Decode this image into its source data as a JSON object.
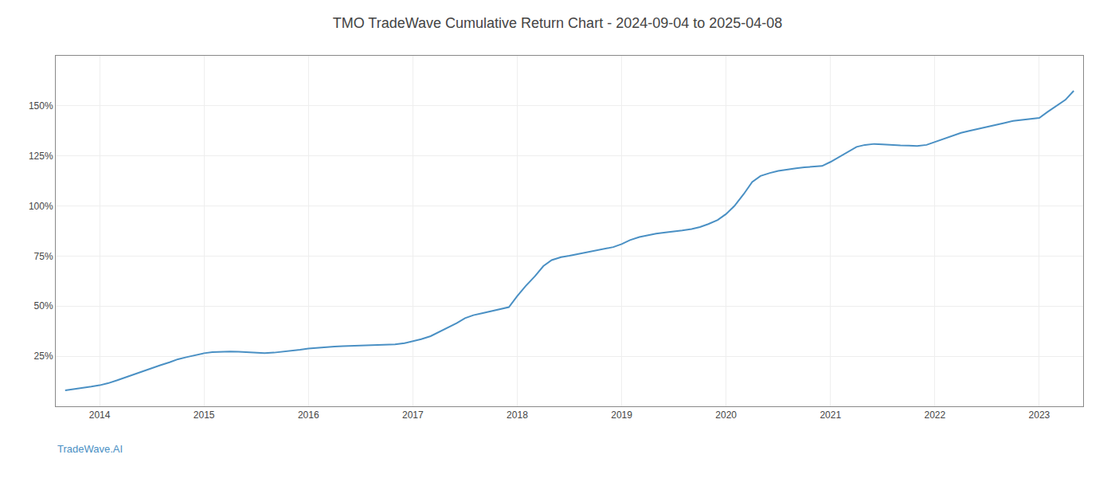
{
  "chart_data": {
    "type": "line",
    "title": "TMO TradeWave Cumulative Return Chart - 2024-09-04 to 2025-04-08",
    "annotations": [
      "TradeWave.AI"
    ],
    "color": "#4a90c4",
    "x": [
      2013.67,
      2013.75,
      2013.83,
      2013.92,
      2014.0,
      2014.08,
      2014.17,
      2014.25,
      2014.33,
      2014.42,
      2014.5,
      2014.58,
      2014.67,
      2014.75,
      2014.83,
      2014.92,
      2015.0,
      2015.08,
      2015.17,
      2015.25,
      2015.33,
      2015.42,
      2015.5,
      2015.58,
      2015.67,
      2015.75,
      2015.83,
      2015.92,
      2016.0,
      2016.08,
      2016.17,
      2016.25,
      2016.33,
      2016.42,
      2016.5,
      2016.58,
      2016.67,
      2016.75,
      2016.83,
      2016.92,
      2017.0,
      2017.08,
      2017.17,
      2017.25,
      2017.33,
      2017.42,
      2017.5,
      2017.58,
      2017.67,
      2017.75,
      2017.83,
      2017.92,
      2018.0,
      2018.08,
      2018.17,
      2018.25,
      2018.33,
      2018.42,
      2018.5,
      2018.58,
      2018.67,
      2018.75,
      2018.83,
      2018.92,
      2019.0,
      2019.08,
      2019.17,
      2019.25,
      2019.33,
      2019.42,
      2019.5,
      2019.58,
      2019.67,
      2019.75,
      2019.83,
      2019.92,
      2020.0,
      2020.08,
      2020.17,
      2020.25,
      2020.33,
      2020.42,
      2020.5,
      2020.58,
      2020.67,
      2020.75,
      2020.83,
      2020.92,
      2021.0,
      2021.08,
      2021.17,
      2021.25,
      2021.33,
      2021.42,
      2021.5,
      2021.58,
      2021.67,
      2021.75,
      2021.83,
      2021.92,
      2022.0,
      2022.08,
      2022.17,
      2022.25,
      2022.33,
      2022.42,
      2022.5,
      2022.58,
      2022.67,
      2022.75,
      2022.83,
      2022.92,
      2023.0,
      2023.08,
      2023.17,
      2023.25,
      2023.33
    ],
    "values": [
      8.0,
      8.5,
      9.0,
      9.8,
      10.5,
      11.5,
      13.0,
      14.5,
      16.0,
      17.5,
      19.0,
      20.5,
      22.0,
      23.5,
      24.5,
      25.5,
      26.5,
      27.0,
      27.2,
      27.3,
      27.2,
      27.0,
      26.8,
      26.5,
      26.8,
      27.2,
      27.8,
      28.2,
      28.8,
      29.2,
      29.5,
      29.8,
      30.0,
      30.2,
      30.4,
      30.5,
      30.6,
      30.7,
      30.9,
      31.5,
      32.5,
      33.5,
      35.0,
      37.0,
      39.0,
      41.5,
      44.0,
      45.5,
      46.5,
      47.5,
      48.5,
      49.5,
      55.0,
      60.0,
      65.0,
      70.0,
      73.0,
      74.5,
      75.2,
      76.0,
      76.8,
      77.5,
      78.5,
      79.5,
      81.0,
      83.0,
      84.5,
      85.5,
      86.2,
      86.8,
      87.2,
      87.8,
      88.5,
      89.5,
      91.0,
      93.0,
      96.0,
      100.0,
      106.0,
      112.0,
      115.0,
      116.5,
      117.5,
      118.2,
      118.8,
      119.3,
      119.7,
      120.0,
      122.0,
      124.5,
      127.0,
      129.5,
      130.5,
      131.0,
      130.8,
      130.5,
      130.3,
      130.2,
      130.0,
      130.5,
      132.0,
      133.5,
      135.0,
      136.5,
      137.5,
      138.5,
      139.5,
      140.5,
      141.5,
      142.5,
      143.0,
      143.5,
      144.0,
      147.0,
      150.0,
      153.0,
      157.5
    ],
    "xlim": [
      2013.58,
      2023.42
    ],
    "xticks": [
      2014,
      2015,
      2016,
      2017,
      2018,
      2019,
      2020,
      2021,
      2022,
      2023
    ],
    "ylim": [
      0,
      175
    ],
    "yticks": [
      {
        "value": 25,
        "label": "25%"
      },
      {
        "value": 50,
        "label": "50%"
      },
      {
        "value": 75,
        "label": "75%"
      },
      {
        "value": 100,
        "label": "100%"
      },
      {
        "value": 125,
        "label": "125%"
      },
      {
        "value": 150,
        "label": "150%"
      }
    ],
    "grid": true
  }
}
